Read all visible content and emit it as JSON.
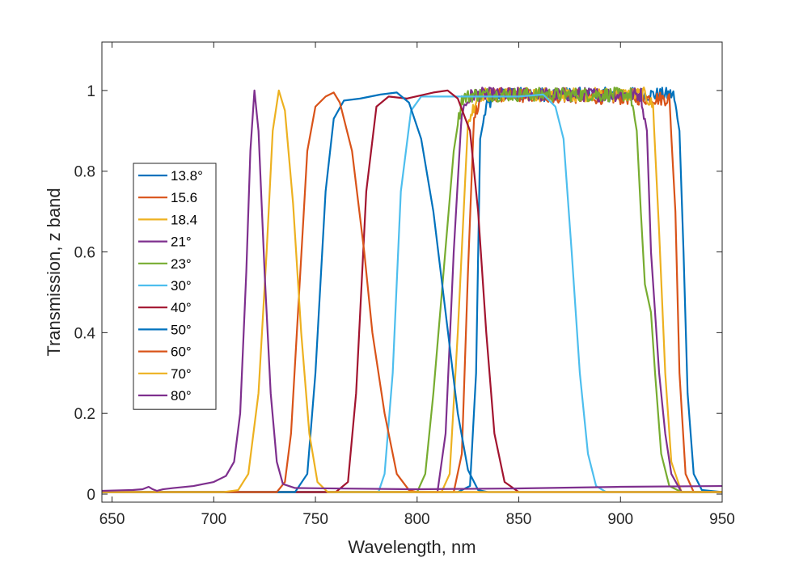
{
  "chart_data": {
    "type": "line",
    "title": "",
    "xlabel": "Wavelength, nm",
    "ylabel": "Transmission, z band",
    "xlim": [
      645,
      950
    ],
    "ylim": [
      -0.02,
      1.12
    ],
    "xticks": [
      650,
      700,
      750,
      800,
      850,
      900,
      950
    ],
    "yticks": [
      0,
      0.2,
      0.4,
      0.6,
      0.8,
      1
    ],
    "ytick_labels": [
      "0",
      "0.2",
      "0.4",
      "0.6",
      "0.8",
      "1"
    ],
    "grid": false,
    "legend_position": "left",
    "colors": [
      "#0072BD",
      "#D95319",
      "#EDB120",
      "#7E2F8E",
      "#77AC30",
      "#4DBEEE",
      "#A2142F"
    ],
    "series": [
      {
        "name": "13.8°",
        "color": "#0072BD",
        "noise": true,
        "points": [
          [
            645,
            0.005
          ],
          [
            820,
            0.005
          ],
          [
            826,
            0.02
          ],
          [
            829,
            0.3
          ],
          [
            831,
            0.88
          ],
          [
            834,
            0.96
          ],
          [
            840,
            0.99
          ],
          [
            920,
            0.99
          ],
          [
            926,
            0.99
          ],
          [
            929,
            0.9
          ],
          [
            931,
            0.6
          ],
          [
            933,
            0.25
          ],
          [
            936,
            0.05
          ],
          [
            940,
            0.01
          ],
          [
            950,
            0.005
          ]
        ]
      },
      {
        "name": "15.6",
        "color": "#D95319",
        "noise": true,
        "points": [
          [
            645,
            0.005
          ],
          [
            818,
            0.005
          ],
          [
            822,
            0.1
          ],
          [
            825,
            0.55
          ],
          [
            828,
            0.94
          ],
          [
            832,
            0.99
          ],
          [
            920,
            0.98
          ],
          [
            924,
            0.98
          ],
          [
            927,
            0.7
          ],
          [
            929,
            0.3
          ],
          [
            932,
            0.05
          ],
          [
            936,
            0.005
          ],
          [
            950,
            0.005
          ]
        ]
      },
      {
        "name": "18.4",
        "color": "#EDB120",
        "noise": true,
        "points": [
          [
            645,
            0.005
          ],
          [
            812,
            0.005
          ],
          [
            816,
            0.05
          ],
          [
            820,
            0.4
          ],
          [
            825,
            0.92
          ],
          [
            830,
            0.99
          ],
          [
            912,
            0.99
          ],
          [
            916,
            0.96
          ],
          [
            919,
            0.65
          ],
          [
            922,
            0.3
          ],
          [
            925,
            0.08
          ],
          [
            930,
            0.005
          ],
          [
            950,
            0.005
          ]
        ]
      },
      {
        "name": "21°",
        "color": "#7E2F8E",
        "noise": true,
        "points": [
          [
            645,
            0.005
          ],
          [
            810,
            0.005
          ],
          [
            814,
            0.15
          ],
          [
            818,
            0.6
          ],
          [
            822,
            0.95
          ],
          [
            827,
            0.99
          ],
          [
            910,
            0.99
          ],
          [
            913,
            0.9
          ],
          [
            915,
            0.6
          ],
          [
            917,
            0.45
          ],
          [
            919,
            0.3
          ],
          [
            922,
            0.15
          ],
          [
            925,
            0.05
          ],
          [
            930,
            0.005
          ],
          [
            950,
            0.005
          ]
        ]
      },
      {
        "name": "23°",
        "color": "#77AC30",
        "noise": true,
        "points": [
          [
            645,
            0.005
          ],
          [
            800,
            0.005
          ],
          [
            804,
            0.05
          ],
          [
            808,
            0.25
          ],
          [
            813,
            0.55
          ],
          [
            818,
            0.85
          ],
          [
            822,
            0.98
          ],
          [
            828,
            0.99
          ],
          [
            905,
            0.99
          ],
          [
            908,
            0.9
          ],
          [
            910,
            0.7
          ],
          [
            912,
            0.52
          ],
          [
            915,
            0.45
          ],
          [
            917,
            0.3
          ],
          [
            920,
            0.1
          ],
          [
            924,
            0.02
          ],
          [
            930,
            0.005
          ],
          [
            950,
            0.005
          ]
        ]
      },
      {
        "name": "30°",
        "color": "#4DBEEE",
        "noise": false,
        "points": [
          [
            645,
            0.005
          ],
          [
            781,
            0.005
          ],
          [
            784,
            0.05
          ],
          [
            788,
            0.3
          ],
          [
            792,
            0.75
          ],
          [
            797,
            0.95
          ],
          [
            802,
            0.985
          ],
          [
            850,
            0.985
          ],
          [
            862,
            0.99
          ],
          [
            868,
            0.96
          ],
          [
            872,
            0.88
          ],
          [
            876,
            0.6
          ],
          [
            880,
            0.3
          ],
          [
            884,
            0.1
          ],
          [
            888,
            0.02
          ],
          [
            893,
            0.005
          ],
          [
            950,
            0.005
          ]
        ]
      },
      {
        "name": "40°",
        "color": "#A2142F",
        "noise": false,
        "points": [
          [
            645,
            0.005
          ],
          [
            760,
            0.005
          ],
          [
            766,
            0.03
          ],
          [
            770,
            0.25
          ],
          [
            775,
            0.75
          ],
          [
            780,
            0.96
          ],
          [
            786,
            0.985
          ],
          [
            795,
            0.98
          ],
          [
            808,
            0.995
          ],
          [
            815,
            1.0
          ],
          [
            820,
            0.98
          ],
          [
            826,
            0.9
          ],
          [
            830,
            0.7
          ],
          [
            834,
            0.4
          ],
          [
            838,
            0.15
          ],
          [
            843,
            0.03
          ],
          [
            850,
            0.005
          ],
          [
            950,
            0.005
          ]
        ]
      },
      {
        "name": "50°",
        "color": "#0072BD",
        "noise": false,
        "points": [
          [
            645,
            0.005
          ],
          [
            740,
            0.005
          ],
          [
            746,
            0.05
          ],
          [
            750,
            0.3
          ],
          [
            755,
            0.75
          ],
          [
            759,
            0.93
          ],
          [
            764,
            0.975
          ],
          [
            772,
            0.98
          ],
          [
            782,
            0.99
          ],
          [
            790,
            0.995
          ],
          [
            796,
            0.97
          ],
          [
            802,
            0.88
          ],
          [
            808,
            0.7
          ],
          [
            814,
            0.45
          ],
          [
            820,
            0.2
          ],
          [
            825,
            0.06
          ],
          [
            830,
            0.01
          ],
          [
            835,
            0.005
          ],
          [
            950,
            0.005
          ]
        ]
      },
      {
        "name": "60°",
        "color": "#D95319",
        "noise": false,
        "points": [
          [
            645,
            0.005
          ],
          [
            731,
            0.005
          ],
          [
            735,
            0.03
          ],
          [
            738,
            0.15
          ],
          [
            742,
            0.5
          ],
          [
            746,
            0.85
          ],
          [
            750,
            0.96
          ],
          [
            755,
            0.985
          ],
          [
            759,
            0.995
          ],
          [
            762,
            0.97
          ],
          [
            768,
            0.85
          ],
          [
            774,
            0.6
          ],
          [
            778,
            0.4
          ],
          [
            784,
            0.2
          ],
          [
            790,
            0.05
          ],
          [
            796,
            0.01
          ],
          [
            800,
            0.005
          ],
          [
            950,
            0.005
          ]
        ]
      },
      {
        "name": "70°",
        "color": "#EDB120",
        "noise": false,
        "points": [
          [
            645,
            0.005
          ],
          [
            705,
            0.005
          ],
          [
            712,
            0.01
          ],
          [
            717,
            0.05
          ],
          [
            722,
            0.25
          ],
          [
            726,
            0.6
          ],
          [
            729,
            0.9
          ],
          [
            732,
            1.0
          ],
          [
            735,
            0.95
          ],
          [
            739,
            0.72
          ],
          [
            743,
            0.4
          ],
          [
            747,
            0.15
          ],
          [
            751,
            0.03
          ],
          [
            756,
            0.005
          ],
          [
            950,
            0.005
          ]
        ]
      },
      {
        "name": "80°",
        "color": "#7E2F8E",
        "noise": false,
        "points": [
          [
            645,
            0.008
          ],
          [
            660,
            0.01
          ],
          [
            665,
            0.012
          ],
          [
            668,
            0.018
          ],
          [
            670,
            0.012
          ],
          [
            672,
            0.008
          ],
          [
            675,
            0.012
          ],
          [
            680,
            0.015
          ],
          [
            690,
            0.02
          ],
          [
            700,
            0.03
          ],
          [
            706,
            0.045
          ],
          [
            710,
            0.08
          ],
          [
            713,
            0.2
          ],
          [
            716,
            0.55
          ],
          [
            718,
            0.85
          ],
          [
            720,
            1.0
          ],
          [
            722,
            0.9
          ],
          [
            725,
            0.55
          ],
          [
            728,
            0.25
          ],
          [
            731,
            0.08
          ],
          [
            734,
            0.025
          ],
          [
            740,
            0.015
          ],
          [
            800,
            0.012
          ],
          [
            850,
            0.014
          ],
          [
            900,
            0.018
          ],
          [
            950,
            0.02
          ]
        ]
      }
    ]
  }
}
